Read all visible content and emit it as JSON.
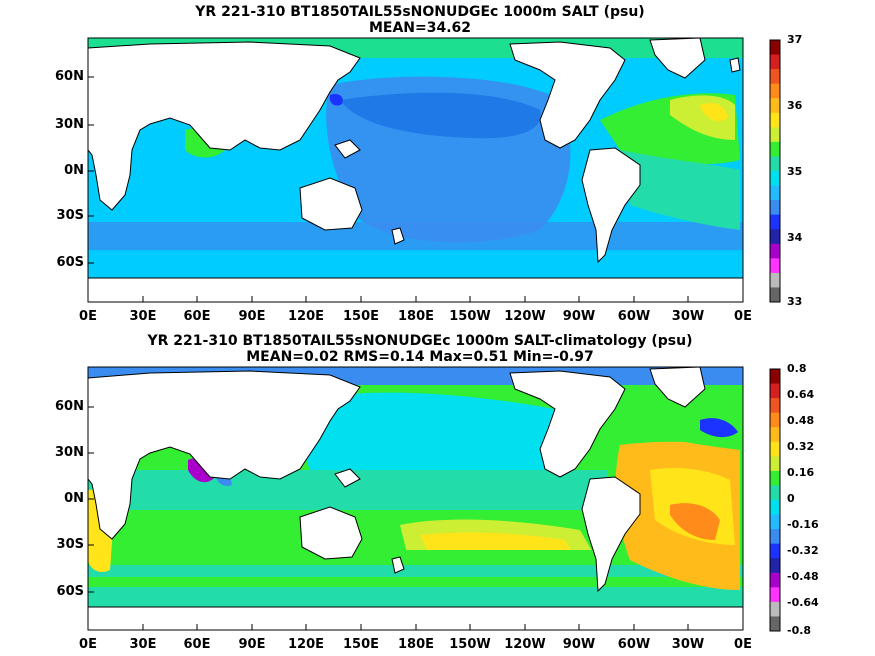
{
  "panels": [
    {
      "title_line1": "YR 221-310 BT1850TAIL55sNONUDGEc 1000m SALT (psu)",
      "title_line2": "MEAN=34.62",
      "colorbar_labels": [
        "37",
        "36",
        "35",
        "34",
        "33"
      ],
      "colorbar_colors": [
        "#8b0000",
        "#d42020",
        "#ee5520",
        "#ff8c1a",
        "#ffbb1a",
        "#ffe41a",
        "#ccee33",
        "#33ee33",
        "#22ddaa",
        "#00e0ee",
        "#22bbff",
        "#3a8cf0",
        "#1c33ff",
        "#2222aa",
        "#aa00cc",
        "#ff33ff",
        "#bbbbbb",
        "#666666"
      ]
    },
    {
      "title_line1": "YR 221-310 BT1850TAIL55sNONUDGEc 1000m SALT-climatology (psu)",
      "title_line2": "MEAN=0.02   RMS=0.14   Max=0.51   Min=-0.97",
      "colorbar_labels": [
        "0.8",
        "0.64",
        "0.48",
        "0.32",
        "0.16",
        "0",
        "-0.16",
        "-0.32",
        "-0.48",
        "-0.64",
        "-0.8"
      ],
      "colorbar_colors": [
        "#8b0000",
        "#d42020",
        "#ee5520",
        "#ff8c1a",
        "#ffbb1a",
        "#ffe41a",
        "#ccee33",
        "#33ee33",
        "#22ddaa",
        "#00e0ee",
        "#22bbff",
        "#3a8cf0",
        "#1c33ff",
        "#2222aa",
        "#aa00cc",
        "#ff33ff",
        "#bbbbbb",
        "#666666"
      ]
    }
  ],
  "lat_labels": [
    "60N",
    "30N",
    "0N",
    "30S",
    "60S"
  ],
  "lon_labels": [
    "0E",
    "30E",
    "60E",
    "90E",
    "120E",
    "150E",
    "180E",
    "150W",
    "120W",
    "90W",
    "60W",
    "30W",
    "0E"
  ],
  "colors": {
    "land": "#ffffff",
    "ocean_base_top": "#00ccff",
    "ocean_base_bottom": "#00ee88"
  }
}
